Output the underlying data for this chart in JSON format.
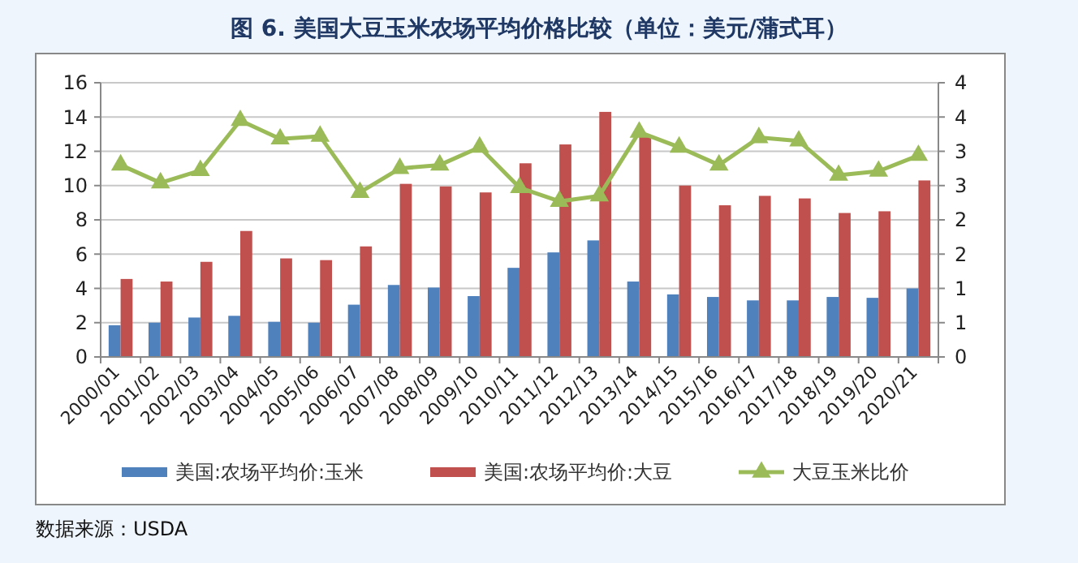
{
  "chart_data": {
    "type": "bar",
    "title": "图 6. 美国大豆玉米农场平均价格比较（单位：美元/蒲式耳）",
    "categories": [
      "2000/01",
      "2001/02",
      "2002/03",
      "2003/04",
      "2004/05",
      "2005/06",
      "2006/07",
      "2007/08",
      "2008/09",
      "2009/10",
      "2010/11",
      "2011/12",
      "2012/13",
      "2013/14",
      "2014/15",
      "2015/16",
      "2016/17",
      "2017/18",
      "2018/19",
      "2019/20",
      "2020/21"
    ],
    "series": [
      {
        "name": "美国:农场平均价:玉米",
        "color": "#4f81bd",
        "values": [
          1.85,
          2.0,
          2.3,
          2.4,
          2.05,
          2.0,
          3.05,
          4.2,
          4.05,
          3.55,
          5.2,
          6.1,
          6.8,
          4.4,
          3.65,
          3.5,
          3.3,
          3.3,
          3.5,
          3.45,
          4.0
        ]
      },
      {
        "name": "美国:农场平均价:大豆",
        "color": "#c0504d",
        "values": [
          4.55,
          4.4,
          5.55,
          7.35,
          5.75,
          5.65,
          6.45,
          10.1,
          9.95,
          9.6,
          11.3,
          12.4,
          14.3,
          12.9,
          10.0,
          8.85,
          9.4,
          9.25,
          8.4,
          8.5,
          10.3
        ]
      },
      {
        "name": "大豆玉米比价",
        "type": "line",
        "axis": "y2",
        "color": "#9bbb59",
        "marker": "triangle",
        "values": [
          2.8,
          2.54,
          2.72,
          3.45,
          3.18,
          3.22,
          2.4,
          2.75,
          2.8,
          3.06,
          2.47,
          2.27,
          2.35,
          3.28,
          3.06,
          2.8,
          3.2,
          3.15,
          2.65,
          2.71,
          2.94
        ]
      }
    ],
    "ylim": [
      0,
      16
    ],
    "yticks": [
      0,
      2,
      4,
      6,
      8,
      10,
      12,
      14,
      16
    ],
    "y2lim": [
      0,
      4
    ],
    "y2ticks": [
      0,
      {
        "value": 0.5,
        "label": "1"
      },
      1,
      {
        "value": 1.5,
        "label": "2"
      },
      2,
      {
        "value": 2.5,
        "label": "3"
      },
      3,
      {
        "value": 3.5,
        "label": "4"
      },
      4
    ],
    "grid": "y",
    "legend": "bottom",
    "annotations": [
      "数据来源：USDA"
    ]
  }
}
